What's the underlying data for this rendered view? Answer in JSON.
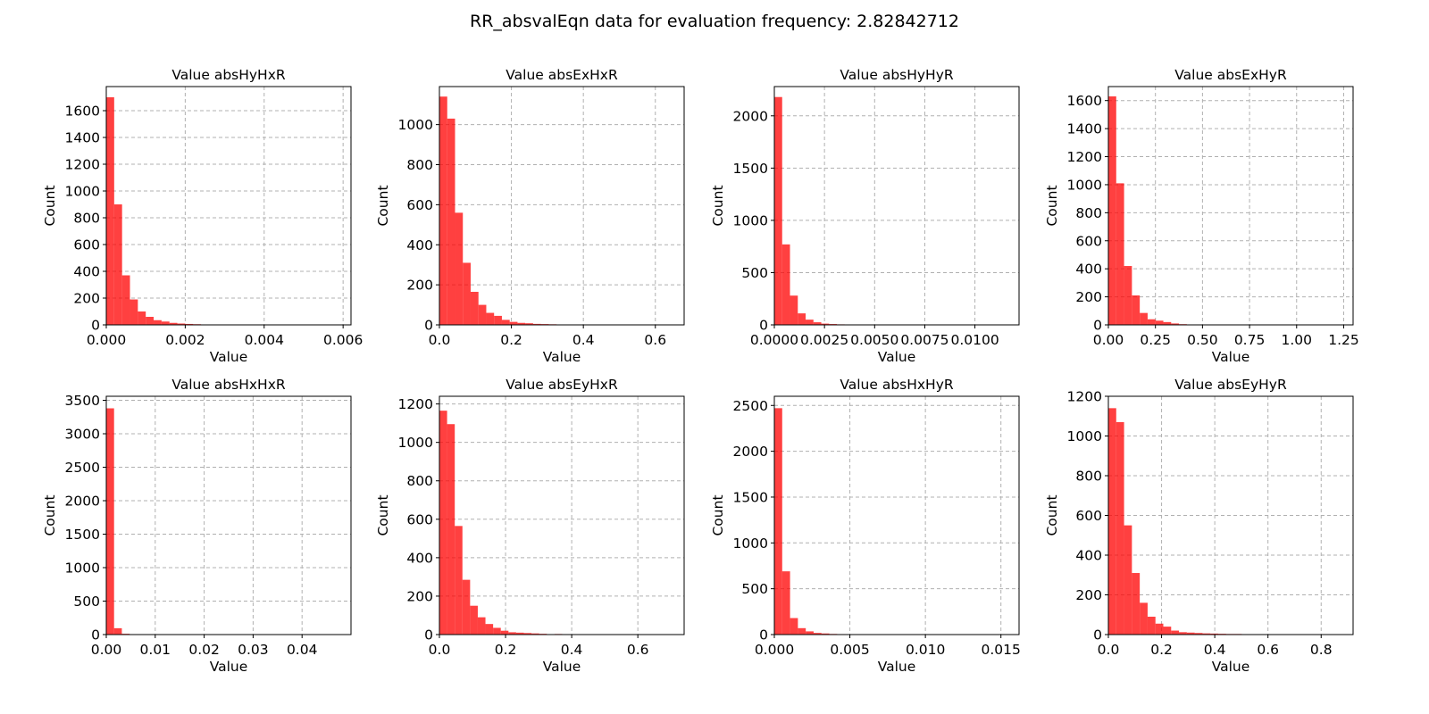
{
  "figure_title": "RR_absvalEqn data for evaluation frequency: 2.82842712",
  "colors": {
    "bar": "#ff0000",
    "grid": "#b0b0b0"
  },
  "chart_data": [
    {
      "type": "bar",
      "title": "Value absHyHxR",
      "xlabel": "Value",
      "ylabel": "Count",
      "xlim": [
        0,
        0.0062
      ],
      "ylim": [
        0,
        1780
      ],
      "xticks": [
        0.0,
        0.002,
        0.004,
        0.006
      ],
      "xtick_labels": [
        "0.000",
        "0.002",
        "0.004",
        "0.006"
      ],
      "yticks": [
        0,
        200,
        400,
        600,
        800,
        1000,
        1200,
        1400,
        1600
      ],
      "ytick_labels": [
        "0",
        "200",
        "400",
        "600",
        "800",
        "1000",
        "1200",
        "1400",
        "1600"
      ],
      "bin_width": 0.0002,
      "values": [
        1700,
        900,
        370,
        190,
        100,
        60,
        35,
        25,
        15,
        10,
        7,
        5,
        3,
        2,
        2,
        1,
        1,
        1,
        0,
        0,
        0,
        0,
        0,
        0,
        0,
        0,
        0,
        0,
        0,
        1
      ]
    },
    {
      "type": "bar",
      "title": "Value absExHxR",
      "xlabel": "Value",
      "ylabel": "Count",
      "xlim": [
        0,
        0.68
      ],
      "ylim": [
        0,
        1190
      ],
      "xticks": [
        0.0,
        0.2,
        0.4,
        0.6
      ],
      "xtick_labels": [
        "0.0",
        "0.2",
        "0.4",
        "0.6"
      ],
      "yticks": [
        0,
        200,
        400,
        600,
        800,
        1000
      ],
      "ytick_labels": [
        "0",
        "200",
        "400",
        "600",
        "800",
        "1000"
      ],
      "bin_width": 0.0217,
      "values": [
        1140,
        1030,
        560,
        310,
        165,
        100,
        60,
        45,
        25,
        15,
        10,
        8,
        5,
        4,
        3,
        2,
        1,
        1,
        1,
        0,
        0,
        0,
        0,
        0,
        0,
        0,
        0,
        0,
        0,
        1
      ]
    },
    {
      "type": "bar",
      "title": "Value absHyHyR",
      "xlabel": "Value",
      "ylabel": "Count",
      "xlim": [
        0,
        0.0122
      ],
      "ylim": [
        0,
        2280
      ],
      "xticks": [
        0.0,
        0.0025,
        0.005,
        0.0075,
        0.01
      ],
      "xtick_labels": [
        "0.0000",
        "0.0025",
        "0.0050",
        "0.0075",
        "0.0100"
      ],
      "yticks": [
        0,
        500,
        1000,
        1500,
        2000
      ],
      "ytick_labels": [
        "0",
        "500",
        "1000",
        "1500",
        "2000"
      ],
      "bin_width": 0.00039,
      "values": [
        2180,
        770,
        280,
        110,
        50,
        25,
        12,
        8,
        5,
        3,
        2,
        1,
        1,
        0,
        0,
        0,
        0,
        0,
        0,
        0,
        0,
        0,
        0,
        0,
        0,
        0,
        0,
        0,
        0,
        1
      ]
    },
    {
      "type": "bar",
      "title": "Value absExHyR",
      "xlabel": "Value",
      "ylabel": "Count",
      "xlim": [
        0,
        1.3
      ],
      "ylim": [
        0,
        1700
      ],
      "xticks": [
        0.0,
        0.25,
        0.5,
        0.75,
        1.0,
        1.25
      ],
      "xtick_labels": [
        "0.00",
        "0.25",
        "0.50",
        "0.75",
        "1.00",
        "1.25"
      ],
      "yticks": [
        0,
        200,
        400,
        600,
        800,
        1000,
        1200,
        1400,
        1600
      ],
      "ytick_labels": [
        "0",
        "200",
        "400",
        "600",
        "800",
        "1000",
        "1200",
        "1400",
        "1600"
      ],
      "bin_width": 0.0417,
      "values": [
        1630,
        1010,
        420,
        210,
        85,
        40,
        30,
        20,
        10,
        5,
        3,
        2,
        1,
        1,
        0,
        0,
        0,
        0,
        0,
        0,
        0,
        0,
        0,
        0,
        0,
        0,
        0,
        0,
        0,
        1
      ]
    },
    {
      "type": "bar",
      "title": "Value absHxHxR",
      "xlabel": "Value",
      "ylabel": "Count",
      "xlim": [
        0,
        0.05
      ],
      "ylim": [
        0,
        3560
      ],
      "xticks": [
        0.0,
        0.01,
        0.02,
        0.03,
        0.04
      ],
      "xtick_labels": [
        "0.00",
        "0.01",
        "0.02",
        "0.03",
        "0.04"
      ],
      "yticks": [
        0,
        500,
        1000,
        1500,
        2000,
        2500,
        3000,
        3500
      ],
      "ytick_labels": [
        "0",
        "500",
        "1000",
        "1500",
        "2000",
        "2500",
        "3000",
        "3500"
      ],
      "bin_width": 0.00159,
      "values": [
        3380,
        95,
        12,
        4,
        2,
        1,
        1,
        0,
        0,
        0,
        0,
        0,
        0,
        0,
        0,
        0,
        0,
        0,
        0,
        0,
        0,
        0,
        0,
        0,
        0,
        0,
        0,
        0,
        0,
        1
      ]
    },
    {
      "type": "bar",
      "title": "Value absEyHxR",
      "xlabel": "Value",
      "ylabel": "Count",
      "xlim": [
        0,
        0.74
      ],
      "ylim": [
        0,
        1240
      ],
      "xticks": [
        0.0,
        0.2,
        0.4,
        0.6
      ],
      "xtick_labels": [
        "0.0",
        "0.2",
        "0.4",
        "0.6"
      ],
      "yticks": [
        0,
        200,
        400,
        600,
        800,
        1000,
        1200
      ],
      "ytick_labels": [
        "0",
        "200",
        "400",
        "600",
        "800",
        "1000",
        "1200"
      ],
      "bin_width": 0.0232,
      "values": [
        1165,
        1095,
        565,
        285,
        150,
        90,
        55,
        35,
        20,
        12,
        10,
        8,
        6,
        4,
        2,
        3,
        2,
        1,
        1,
        1,
        0,
        0,
        0,
        0,
        0,
        0,
        0,
        0,
        0,
        1
      ]
    },
    {
      "type": "bar",
      "title": "Value absHxHyR",
      "xlabel": "Value",
      "ylabel": "Count",
      "xlim": [
        0,
        0.0162
      ],
      "ylim": [
        0,
        2600
      ],
      "xticks": [
        0.0,
        0.005,
        0.01,
        0.015
      ],
      "xtick_labels": [
        "0.000",
        "0.005",
        "0.010",
        "0.015"
      ],
      "yticks": [
        0,
        500,
        1000,
        1500,
        2000,
        2500
      ],
      "ytick_labels": [
        "0",
        "500",
        "1000",
        "1500",
        "2000",
        "2500"
      ],
      "bin_width": 0.00052,
      "values": [
        2470,
        690,
        180,
        70,
        35,
        18,
        12,
        7,
        5,
        3,
        2,
        1,
        1,
        1,
        0,
        0,
        0,
        0,
        0,
        0,
        0,
        0,
        0,
        0,
        0,
        0,
        0,
        0,
        0,
        1
      ]
    },
    {
      "type": "bar",
      "title": "Value absEyHyR",
      "xlabel": "Value",
      "ylabel": "Count",
      "xlim": [
        0,
        0.92
      ],
      "ylim": [
        0,
        1200
      ],
      "xticks": [
        0.0,
        0.2,
        0.4,
        0.6,
        0.8
      ],
      "xtick_labels": [
        "0.0",
        "0.2",
        "0.4",
        "0.6",
        "0.8"
      ],
      "yticks": [
        0,
        200,
        400,
        600,
        800,
        1000,
        1200
      ],
      "ytick_labels": [
        "0",
        "200",
        "400",
        "600",
        "800",
        "1000",
        "1200"
      ],
      "bin_width": 0.0295,
      "values": [
        1140,
        1070,
        550,
        310,
        160,
        90,
        55,
        40,
        20,
        12,
        10,
        8,
        6,
        5,
        4,
        3,
        3,
        2,
        2,
        1,
        1,
        1,
        1,
        0,
        0,
        0,
        0,
        0,
        0,
        1
      ]
    }
  ]
}
